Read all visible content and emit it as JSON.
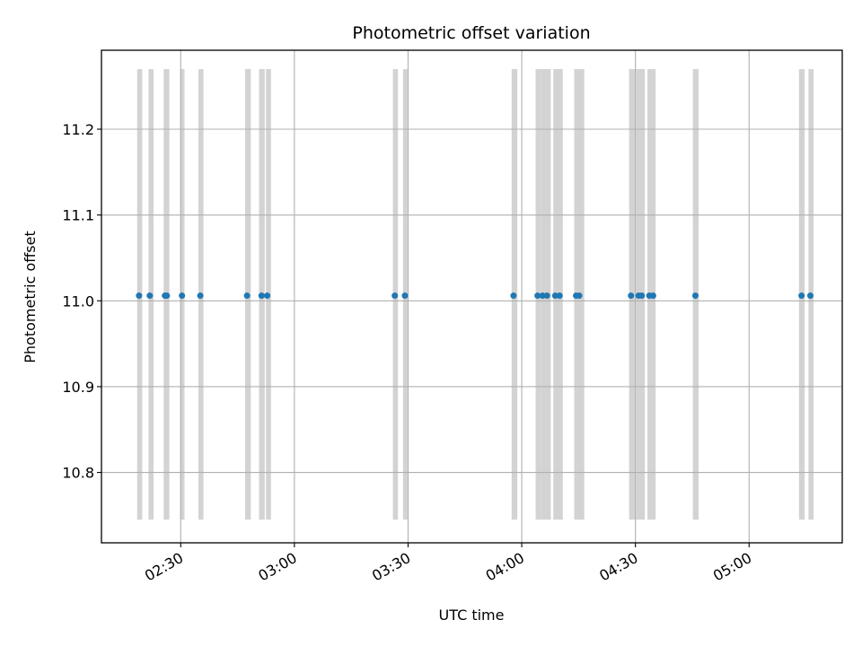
{
  "chart_data": {
    "type": "scatter",
    "title": "Photometric offset variation",
    "xlabel": "UTC time",
    "ylabel": "Photometric offset",
    "x_axis_kind": "time",
    "xlim": [
      "02:09:05",
      "05:24:35"
    ],
    "ylim": [
      10.718,
      11.292
    ],
    "x_ticks": [
      "02:30",
      "03:00",
      "03:30",
      "04:00",
      "04:30",
      "05:00"
    ],
    "y_ticks": [
      10.8,
      10.9,
      11.0,
      11.1,
      11.2
    ],
    "grid": true,
    "marker_color": "#1f77b4",
    "band_color": "#d3d3d3",
    "band_range": [
      10.745,
      11.27
    ],
    "points": [
      {
        "t": "02:19:00",
        "y": 11.006
      },
      {
        "t": "02:21:50",
        "y": 11.006
      },
      {
        "t": "02:25:50",
        "y": 11.006
      },
      {
        "t": "02:26:20",
        "y": 11.006
      },
      {
        "t": "02:30:20",
        "y": 11.006
      },
      {
        "t": "02:35:10",
        "y": 11.006
      },
      {
        "t": "02:47:30",
        "y": 11.006
      },
      {
        "t": "02:51:20",
        "y": 11.006
      },
      {
        "t": "02:52:50",
        "y": 11.006
      },
      {
        "t": "03:26:30",
        "y": 11.006
      },
      {
        "t": "03:29:10",
        "y": 11.006
      },
      {
        "t": "03:57:50",
        "y": 11.006
      },
      {
        "t": "04:04:10",
        "y": 11.006
      },
      {
        "t": "04:05:30",
        "y": 11.006
      },
      {
        "t": "04:06:40",
        "y": 11.006
      },
      {
        "t": "04:08:50",
        "y": 11.006
      },
      {
        "t": "04:10:00",
        "y": 11.006
      },
      {
        "t": "04:14:20",
        "y": 11.006
      },
      {
        "t": "04:15:10",
        "y": 11.006
      },
      {
        "t": "04:28:50",
        "y": 11.006
      },
      {
        "t": "04:30:50",
        "y": 11.006
      },
      {
        "t": "04:31:40",
        "y": 11.006
      },
      {
        "t": "04:33:40",
        "y": 11.006
      },
      {
        "t": "04:34:40",
        "y": 11.006
      },
      {
        "t": "04:45:50",
        "y": 11.006
      },
      {
        "t": "05:13:50",
        "y": 11.006
      },
      {
        "t": "05:16:10",
        "y": 11.006
      }
    ],
    "bands": [
      {
        "start": "02:18:30",
        "end": "02:19:50"
      },
      {
        "start": "02:21:30",
        "end": "02:22:50"
      },
      {
        "start": "02:25:30",
        "end": "02:27:00"
      },
      {
        "start": "02:29:50",
        "end": "02:31:00"
      },
      {
        "start": "02:34:40",
        "end": "02:36:00"
      },
      {
        "start": "02:47:00",
        "end": "02:48:30"
      },
      {
        "start": "02:50:40",
        "end": "02:52:10"
      },
      {
        "start": "02:52:30",
        "end": "02:53:50"
      },
      {
        "start": "03:26:00",
        "end": "03:27:20"
      },
      {
        "start": "03:28:40",
        "end": "03:29:50"
      },
      {
        "start": "03:57:20",
        "end": "03:58:50"
      },
      {
        "start": "04:03:40",
        "end": "04:05:10"
      },
      {
        "start": "04:05:10",
        "end": "04:07:40"
      },
      {
        "start": "04:08:20",
        "end": "04:10:50"
      },
      {
        "start": "04:13:50",
        "end": "04:16:30"
      },
      {
        "start": "04:28:20",
        "end": "04:30:00"
      },
      {
        "start": "04:30:10",
        "end": "04:32:30"
      },
      {
        "start": "04:33:10",
        "end": "04:35:20"
      },
      {
        "start": "04:45:10",
        "end": "04:46:40"
      },
      {
        "start": "05:13:10",
        "end": "05:14:40"
      },
      {
        "start": "05:15:40",
        "end": "05:17:00"
      }
    ]
  }
}
